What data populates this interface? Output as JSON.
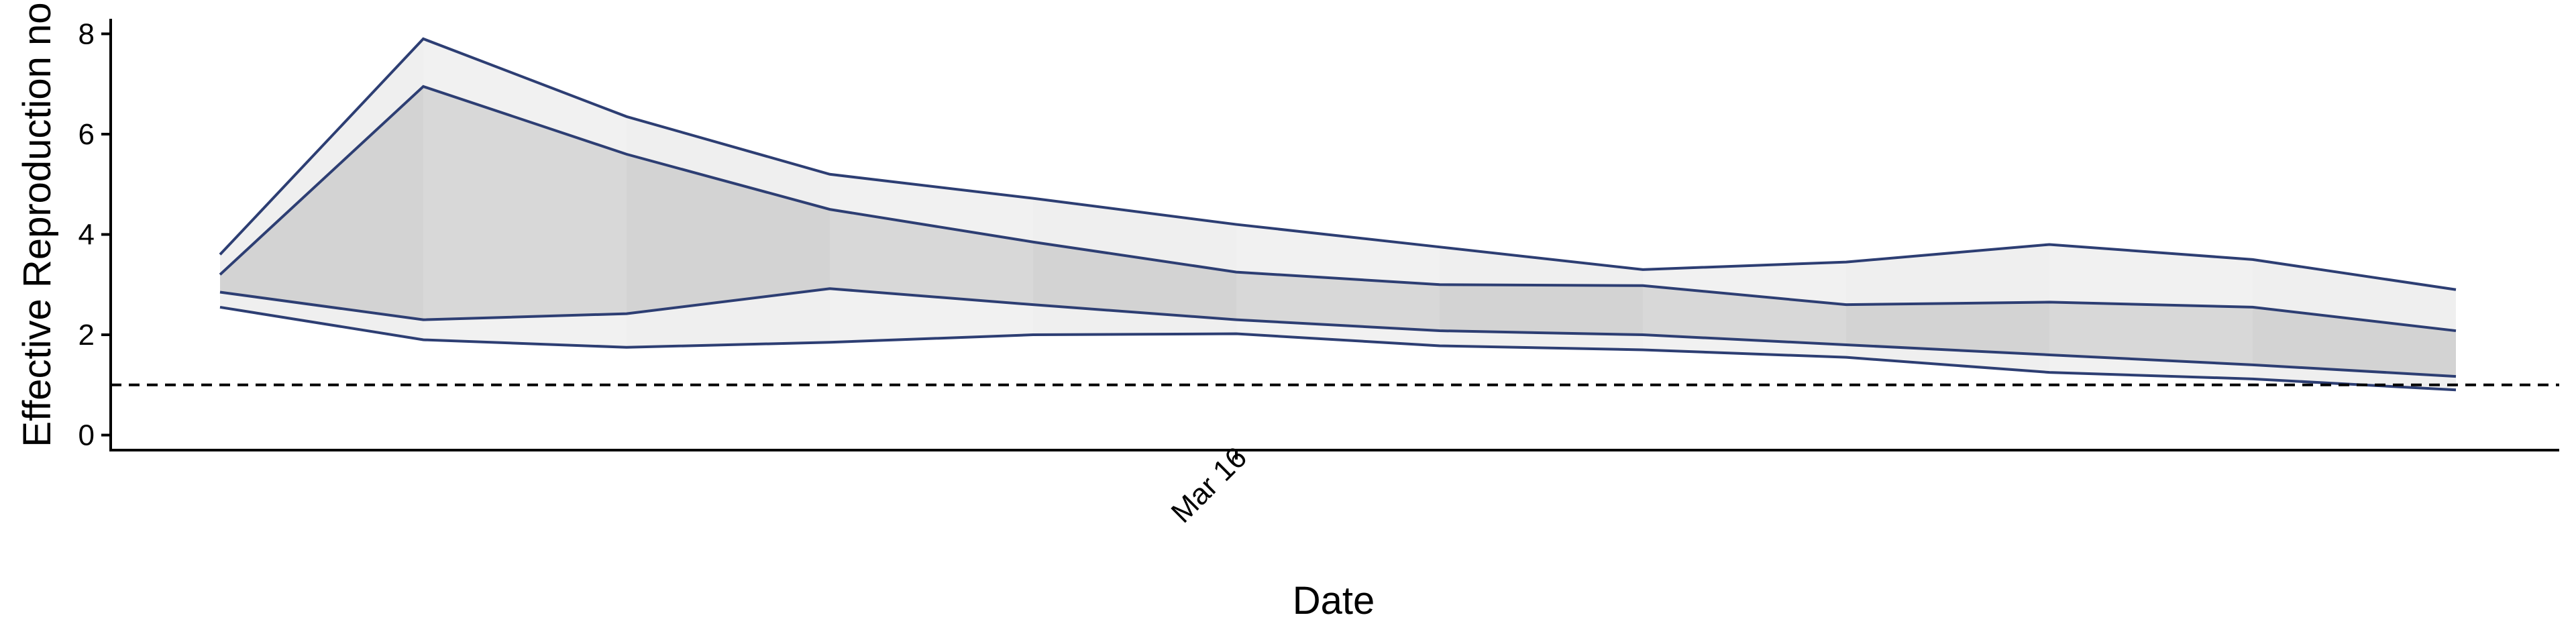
{
  "chart_data": {
    "type": "area",
    "xlabel": "Date",
    "ylabel": "Effective Reproduction no",
    "x_tick_labels": [
      "Mar 16"
    ],
    "y_ticks": [
      0,
      2,
      4,
      6,
      8
    ],
    "ylim": [
      -0.3,
      8.3
    ],
    "x_points": 12,
    "x_tick_index": 5,
    "reference_line": {
      "y": 1,
      "style": "dashed"
    },
    "outer_band": {
      "upper": [
        3.6,
        7.9,
        6.35,
        5.2,
        4.72,
        4.2,
        3.75,
        3.3,
        3.45,
        3.8,
        3.5,
        2.9
      ],
      "lower": [
        2.55,
        1.9,
        1.75,
        1.85,
        2.0,
        2.02,
        1.78,
        1.7,
        1.55,
        1.25,
        1.12,
        0.9
      ]
    },
    "inner_band": {
      "upper": [
        3.2,
        6.95,
        5.6,
        4.5,
        3.85,
        3.25,
        3.0,
        2.98,
        2.6,
        2.65,
        2.55,
        2.08
      ],
      "lower": [
        2.85,
        2.3,
        2.42,
        2.92,
        2.6,
        2.3,
        2.08,
        2.0,
        1.8,
        1.6,
        1.4,
        1.17
      ]
    },
    "colors": {
      "line": "#2d3e73",
      "outer_fill": "#efefef",
      "inner_fill": "#d3d3d3",
      "axis": "#000000",
      "reference": "#000000"
    },
    "grid": false,
    "legend": "none"
  }
}
